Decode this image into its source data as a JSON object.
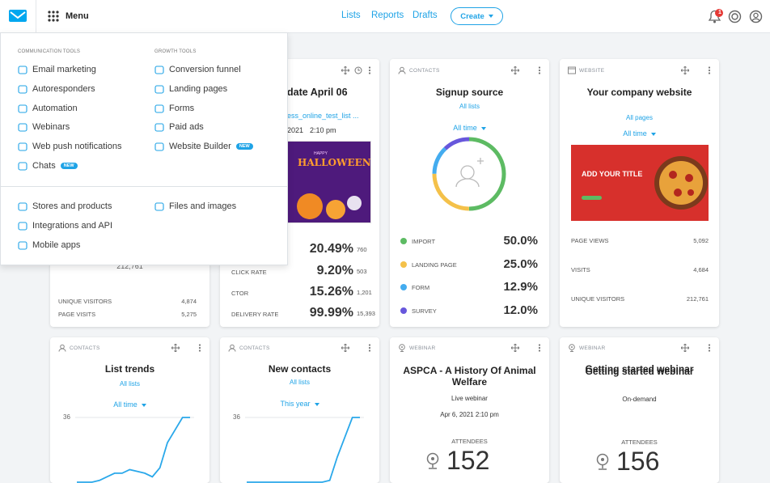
{
  "header": {
    "menu": "Menu",
    "nav": [
      "Lists",
      "Reports",
      "Drafts"
    ],
    "create": "Create",
    "notifications": "1"
  },
  "menu": {
    "columns": [
      {
        "title": "COMMUNICATION TOOLS",
        "items": [
          {
            "label": "Email marketing"
          },
          {
            "label": "Autoresponders"
          },
          {
            "label": "Automation"
          },
          {
            "label": "Webinars"
          },
          {
            "label": "Web push notifications"
          },
          {
            "label": "Chats",
            "badge": "NEW"
          }
        ]
      },
      {
        "title": "GROWTH TOOLS",
        "items": [
          {
            "label": "Conversion funnel"
          },
          {
            "label": "Landing pages"
          },
          {
            "label": "Forms"
          },
          {
            "label": "Paid ads"
          },
          {
            "label": "Website Builder",
            "badge": "NEW"
          }
        ]
      }
    ],
    "more": [
      {
        "items": [
          {
            "label": "Stores and products"
          },
          {
            "label": "Integrations and API"
          },
          {
            "label": "Mobile apps"
          }
        ]
      },
      {
        "items": [
          {
            "label": "Files and images"
          }
        ]
      }
    ]
  },
  "cards": [
    {
      "total": "212,761",
      "metrics": [
        {
          "label": "UNIQUE VISITORS",
          "value": "4,874"
        },
        {
          "label": "PAGE VISITS",
          "value": "5,275"
        }
      ]
    },
    {
      "title": "date April 06",
      "list": "ess_online_test_list ...",
      "date": "2021",
      "time": "2:10 pm",
      "image_small": "HAPPY",
      "image_text": "HALLOWEEN",
      "metrics": [
        {
          "value": "20.49%",
          "count": "760"
        },
        {
          "label": "CLICK RATE",
          "value": "9.20%",
          "count": "503"
        },
        {
          "label": "CTOR",
          "value": "15.26%",
          "count": "1,201"
        },
        {
          "label": "DELIVERY RATE",
          "value": "99.99%",
          "count": "15,393"
        }
      ]
    },
    {
      "section": "CONTACTS",
      "title": "Signup source",
      "filter": "All lists",
      "period": "All time",
      "sources": [
        {
          "name": "IMPORT",
          "color": "#5dbb63",
          "share": {
            "value": 50,
            "label": "50.0%"
          }
        },
        {
          "name": "LANDING PAGE",
          "color": "#f4c14a",
          "share": {
            "value": 25,
            "label": "25.0%"
          }
        },
        {
          "name": "FORM",
          "color": "#44acef",
          "share": {
            "value": 12.9,
            "label": "12.9%"
          }
        },
        {
          "name": "SURVEY",
          "color": "#6757dc",
          "share": {
            "value": 12,
            "label": "12.0%"
          }
        }
      ]
    },
    {
      "section": "WEBSITE",
      "title": "Your company website",
      "filter": "All pages",
      "period": "All time",
      "image_text": "ADD YOUR TITLE",
      "metrics": [
        {
          "label": "PAGE VIEWS",
          "value": "5,092"
        },
        {
          "label": "VISITS",
          "value": "4,684"
        },
        {
          "label": "UNIQUE VISITORS",
          "value": "212,761"
        }
      ]
    },
    {
      "section": "CONTACTS",
      "title": "List trends",
      "filter": "All lists",
      "period": "All time",
      "trend": {
        "ylim": [
          0,
          36
        ],
        "yticks": [
          36
        ],
        "values": [
          0,
          0,
          0,
          1,
          3,
          5,
          5,
          7,
          6,
          5,
          3,
          8,
          22,
          29,
          36,
          36
        ]
      }
    },
    {
      "section": "CONTACTS",
      "title": "New contacts",
      "filter": "All lists",
      "period": "This year",
      "trend": {
        "ylim": [
          0,
          36
        ],
        "yticks": [
          36
        ],
        "values": [
          0,
          0,
          0,
          0,
          0,
          0,
          0,
          0,
          0,
          0,
          0,
          1,
          14,
          25,
          36,
          36
        ]
      }
    },
    {
      "section": "WEBINAR",
      "title": "ASPCA - A History Of Animal Welfare",
      "kind": "Live webinar",
      "date": "Apr 6, 2021 2:10 pm",
      "attendees_label": "ATTENDEES",
      "attendees": "152"
    },
    {
      "section": "WEBINAR",
      "title": "Getting started webinar",
      "kind": "On-demand",
      "attendees_label": "ATTENDEES",
      "attendees": "156"
    }
  ]
}
